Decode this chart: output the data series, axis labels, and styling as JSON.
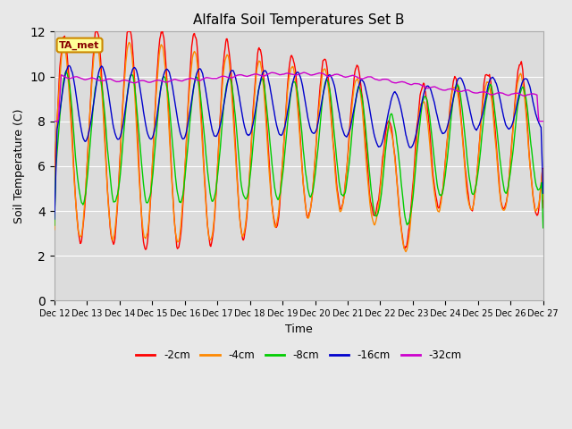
{
  "title": "Alfalfa Soil Temperatures Set B",
  "xlabel": "Time",
  "ylabel": "Soil Temperature (C)",
  "ylim": [
    0,
    12
  ],
  "xlim": [
    0,
    15
  ],
  "fig_bg": "#e8e8e8",
  "plot_bg": "#dcdcdc",
  "series_colors": {
    "-2cm": "#ff0000",
    "-4cm": "#ff8800",
    "-8cm": "#00cc00",
    "-16cm": "#0000cc",
    "-32cm": "#cc00cc"
  },
  "annotation_text": "TA_met",
  "annotation_bg": "#ffff99",
  "annotation_border": "#cc8800",
  "tick_labels": [
    "Dec 12",
    "Dec 13",
    "Dec 14",
    "Dec 15",
    "Dec 16",
    "Dec 17",
    "Dec 18",
    "Dec 19",
    "Dec 20",
    "Dec 21",
    "Dec 22",
    "Dec 23",
    "Dec 24",
    "Dec 25",
    "Dec 26",
    "Dec 27"
  ],
  "yticks": [
    0,
    2,
    4,
    6,
    8,
    10,
    12
  ],
  "n_points": 720,
  "period_days": 1.0
}
